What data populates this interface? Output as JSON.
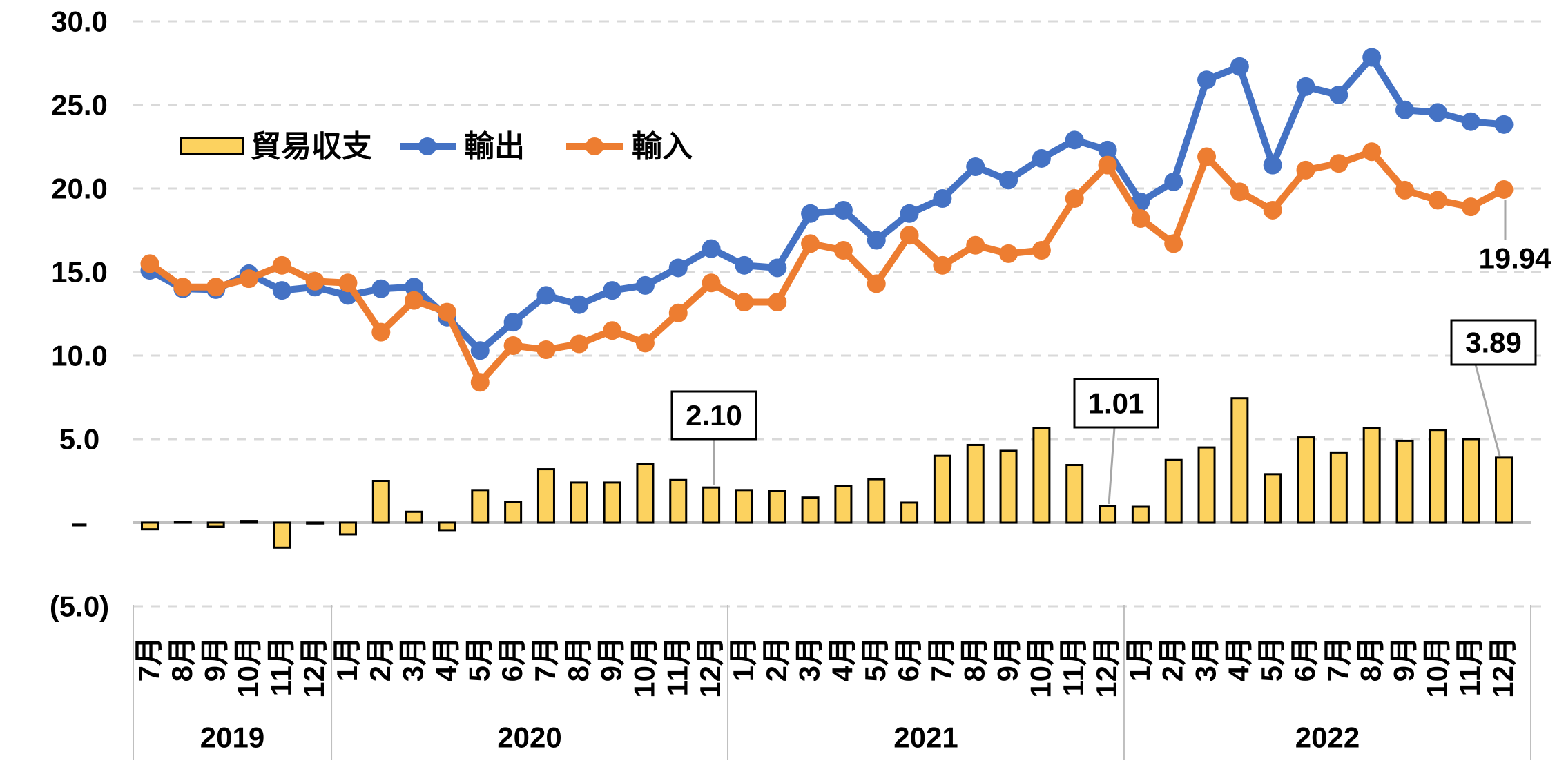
{
  "colors": {
    "bar_fill": "#FCD25F",
    "bar_border": "#000000",
    "exports_line": "#4472C4",
    "imports_line": "#ED7D31",
    "gridline": "#D9D9D9",
    "zero_line": "#BFBFBF",
    "separator": "#BFBFBF",
    "leader_line": "#A6A6A6",
    "annotation_border": "#000000",
    "text": "#000000",
    "background": "#FFFFFF"
  },
  "chart_data": {
    "type": "combo",
    "subtype": "bar+line",
    "categories": [
      "7月",
      "8月",
      "9月",
      "10月",
      "11月",
      "12月",
      "1月",
      "2月",
      "3月",
      "4月",
      "5月",
      "6月",
      "7月",
      "8月",
      "9月",
      "10月",
      "11月",
      "12月",
      "1月",
      "2月",
      "3月",
      "4月",
      "5月",
      "6月",
      "7月",
      "8月",
      "9月",
      "10月",
      "11月",
      "12月",
      "1月",
      "2月",
      "3月",
      "4月",
      "5月",
      "6月",
      "7月",
      "8月",
      "9月",
      "10月",
      "11月",
      "12月"
    ],
    "year_groups": [
      {
        "label": "2019",
        "months": 6
      },
      {
        "label": "2020",
        "months": 12
      },
      {
        "label": "2021",
        "months": 12
      },
      {
        "label": "2022",
        "months": 12
      }
    ],
    "series": [
      {
        "name": "貿易収支",
        "type": "bar",
        "values": [
          -0.4,
          0.05,
          -0.25,
          0.1,
          -1.5,
          -0.05,
          -0.7,
          2.5,
          0.65,
          -0.45,
          1.95,
          1.25,
          3.2,
          2.4,
          2.4,
          3.5,
          2.55,
          2.1,
          1.95,
          1.9,
          1.5,
          2.2,
          2.6,
          1.2,
          4.0,
          4.65,
          4.3,
          5.65,
          3.45,
          1.01,
          0.95,
          3.75,
          4.5,
          7.45,
          2.9,
          5.1,
          4.2,
          5.65,
          4.9,
          5.55,
          5.0,
          3.89
        ]
      },
      {
        "name": "輸出",
        "type": "line",
        "values": [
          15.1,
          14.0,
          13.95,
          14.9,
          13.9,
          14.1,
          13.6,
          14.0,
          14.1,
          12.3,
          10.3,
          12.0,
          13.6,
          13.05,
          13.9,
          14.2,
          15.25,
          16.4,
          15.4,
          15.25,
          18.5,
          18.7,
          16.9,
          18.5,
          19.4,
          21.3,
          20.5,
          21.8,
          22.9,
          22.3,
          19.2,
          20.4,
          26.5,
          27.3,
          21.4,
          26.1,
          25.6,
          27.85,
          24.7,
          24.55,
          24.0,
          23.83
        ]
      },
      {
        "name": "輸入",
        "type": "line",
        "values": [
          15.5,
          14.1,
          14.1,
          14.6,
          15.4,
          14.45,
          14.35,
          11.4,
          13.3,
          12.6,
          8.4,
          10.6,
          10.35,
          10.7,
          11.5,
          10.75,
          12.55,
          14.35,
          13.2,
          13.2,
          16.7,
          16.3,
          14.3,
          17.2,
          15.4,
          16.6,
          16.1,
          16.3,
          19.4,
          21.4,
          18.2,
          16.7,
          21.9,
          19.8,
          18.7,
          21.1,
          21.5,
          22.2,
          19.9,
          19.3,
          18.9,
          19.94
        ]
      }
    ],
    "yticks": [
      {
        "label": "30.0",
        "value": 30
      },
      {
        "label": "25.0",
        "value": 25
      },
      {
        "label": "20.0",
        "value": 20
      },
      {
        "label": "15.0",
        "value": 15
      },
      {
        "label": "10.0",
        "value": 10
      },
      {
        "label": "5.0",
        "value": 5
      },
      {
        "label": "–",
        "value": 0
      },
      {
        "label": "(5.0)",
        "value": -5
      }
    ],
    "ylim": [
      -5,
      30
    ],
    "grid": "horizontal-dashed",
    "legend_position": "inside-top-left",
    "annotations": [
      {
        "text": "2.10",
        "series": "貿易収支",
        "index": 17,
        "style": "box"
      },
      {
        "text": "1.01",
        "series": "貿易収支",
        "index": 29,
        "style": "box"
      },
      {
        "text": "3.89",
        "series": "貿易収支",
        "index": 41,
        "style": "box"
      },
      {
        "text": "19.94",
        "series": "輸入",
        "index": 41,
        "style": "plain"
      }
    ]
  }
}
